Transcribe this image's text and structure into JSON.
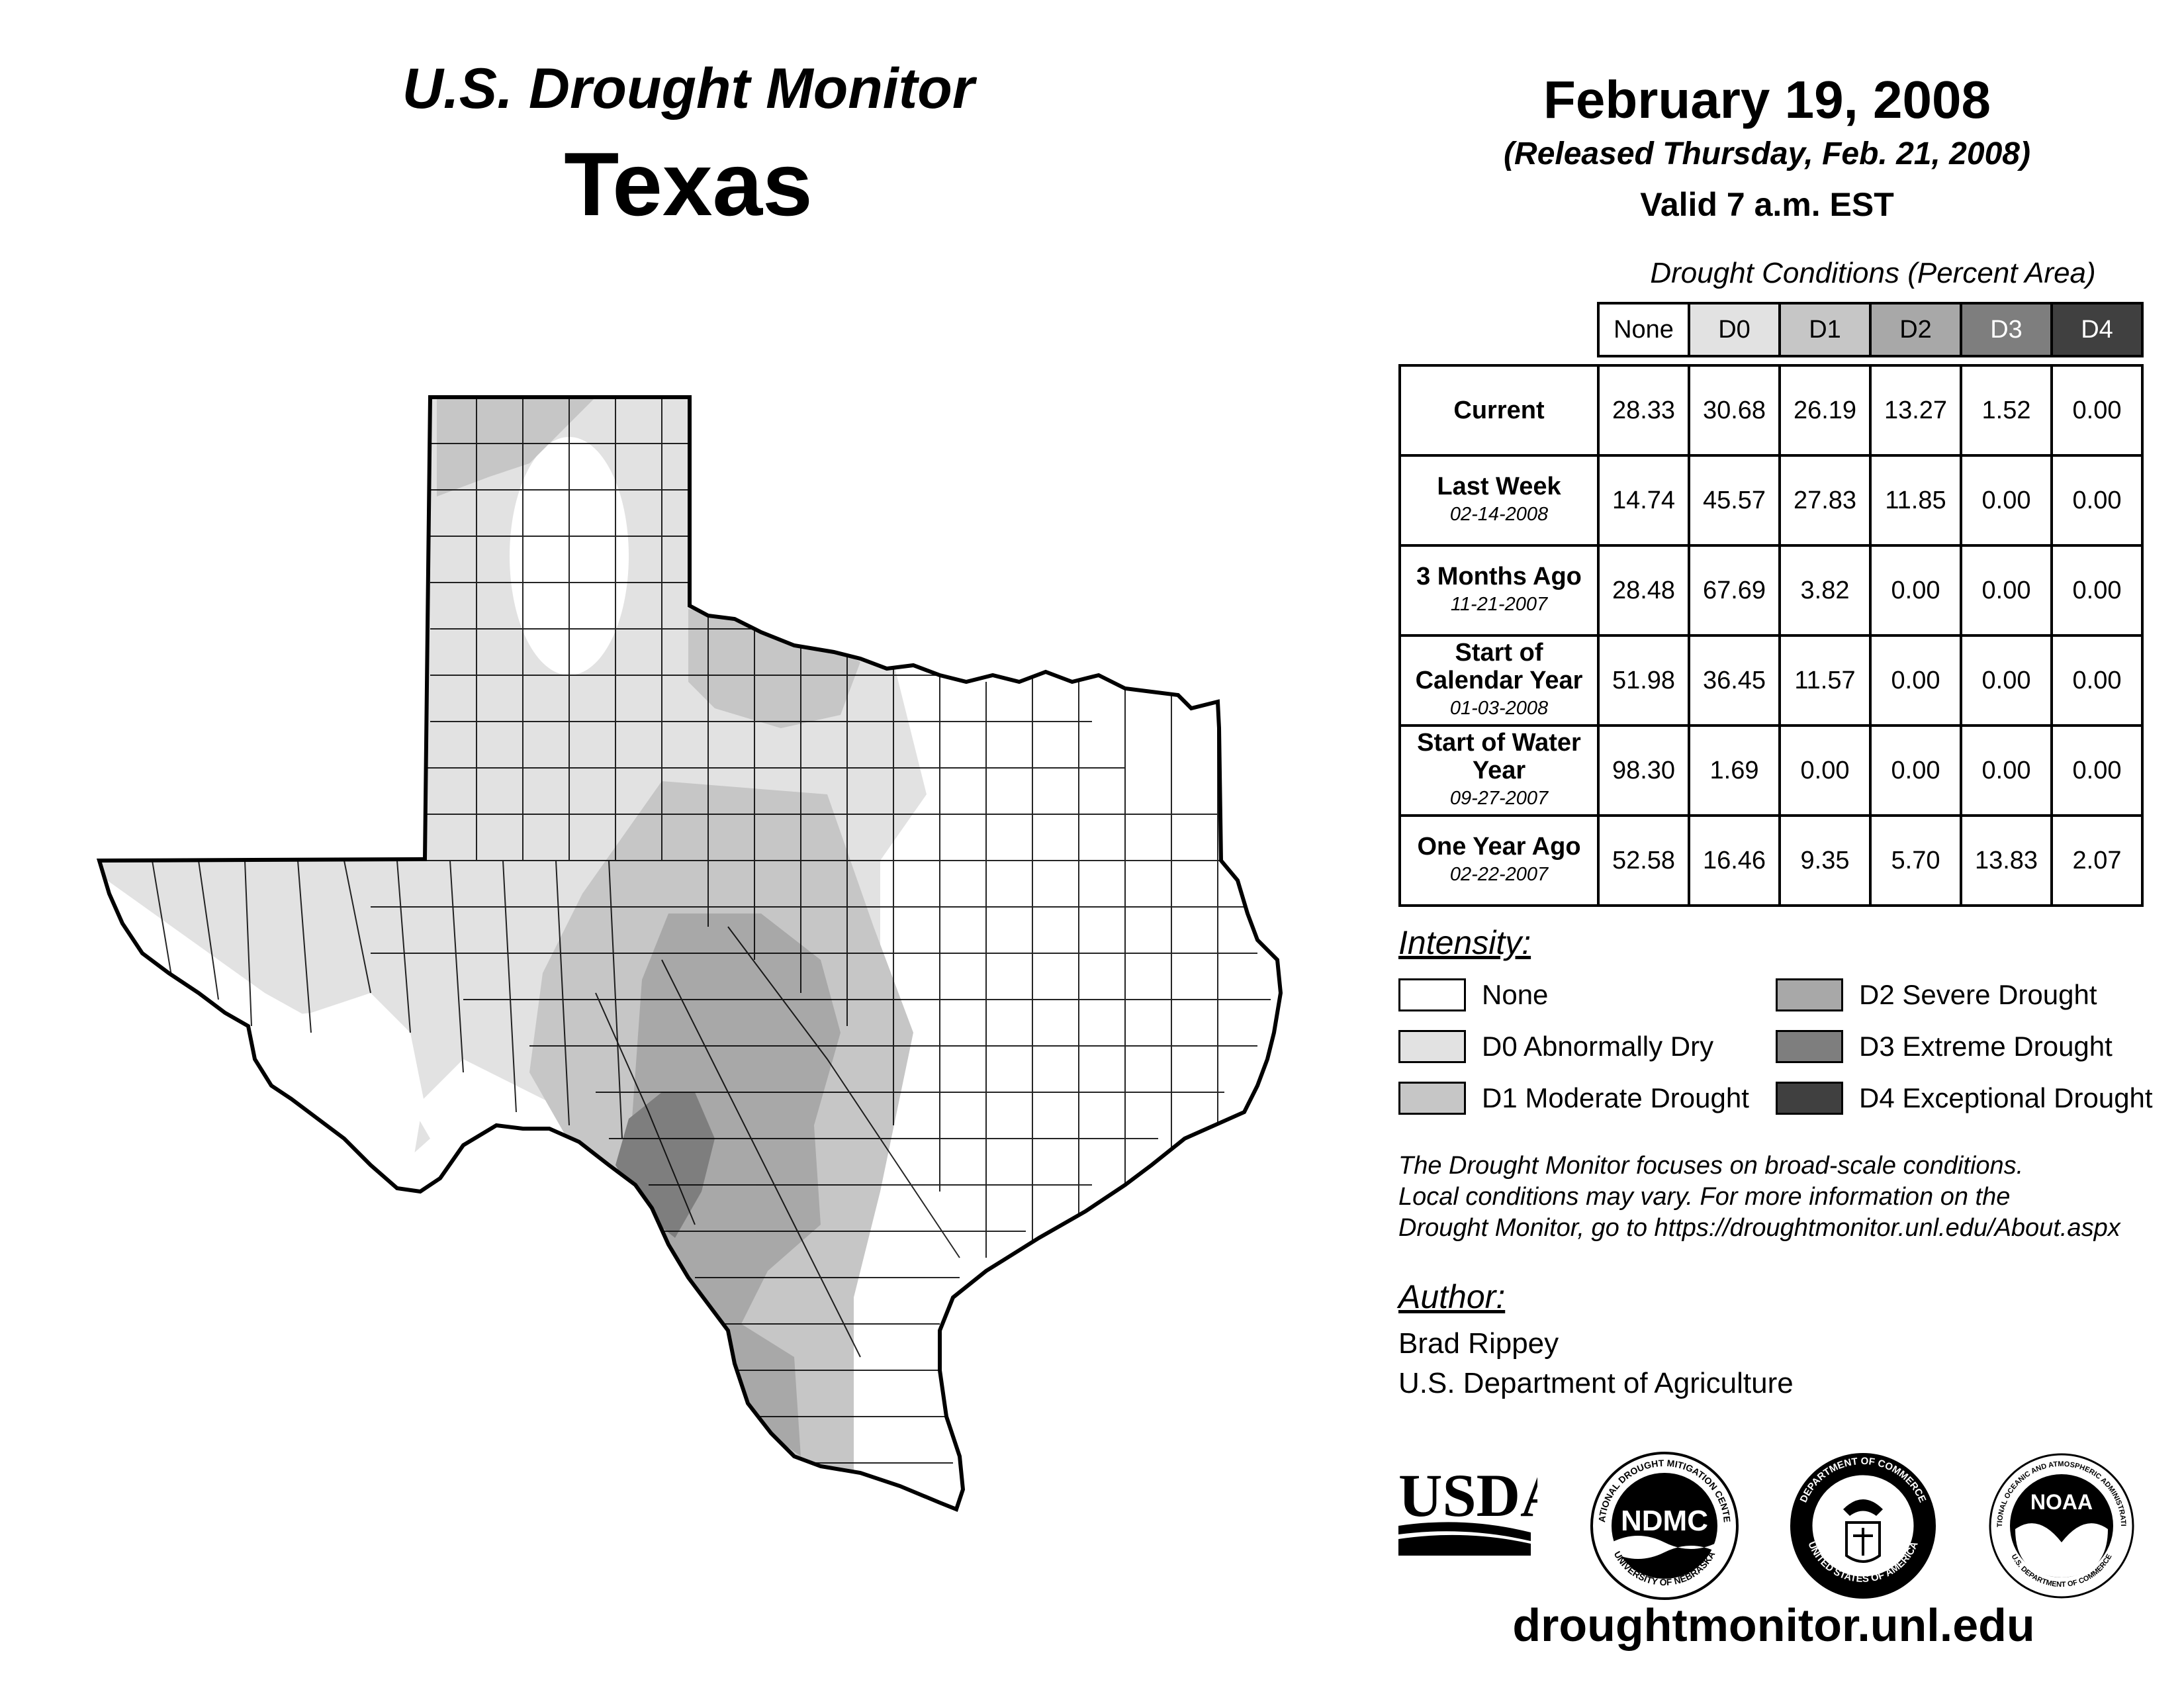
{
  "header": {
    "title": "U.S. Drought Monitor",
    "state": "Texas",
    "date": "February 19, 2008",
    "released": "(Released Thursday, Feb. 21, 2008)",
    "valid": "Valid 7 a.m. EST"
  },
  "table": {
    "caption": "Drought Conditions (Percent Area)",
    "columns": [
      "None",
      "D0",
      "D1",
      "D2",
      "D3",
      "D4"
    ],
    "rows": [
      {
        "label": "Current",
        "date": "",
        "values": [
          "28.33",
          "30.68",
          "26.19",
          "13.27",
          "1.52",
          "0.00"
        ]
      },
      {
        "label": "Last Week",
        "date": "02-14-2008",
        "values": [
          "14.74",
          "45.57",
          "27.83",
          "11.85",
          "0.00",
          "0.00"
        ]
      },
      {
        "label": "3 Months Ago",
        "date": "11-21-2007",
        "values": [
          "28.48",
          "67.69",
          "3.82",
          "0.00",
          "0.00",
          "0.00"
        ]
      },
      {
        "label": "Start of Calendar Year",
        "date": "01-03-2008",
        "values": [
          "51.98",
          "36.45",
          "11.57",
          "0.00",
          "0.00",
          "0.00"
        ]
      },
      {
        "label": "Start of Water Year",
        "date": "09-27-2007",
        "values": [
          "98.30",
          "1.69",
          "0.00",
          "0.00",
          "0.00",
          "0.00"
        ]
      },
      {
        "label": "One Year Ago",
        "date": "02-22-2007",
        "values": [
          "52.58",
          "16.46",
          "9.35",
          "5.70",
          "13.83",
          "2.07"
        ]
      }
    ]
  },
  "legend": {
    "title": "Intensity:",
    "items": [
      {
        "label": "None",
        "color": "#ffffff"
      },
      {
        "label": "D0 Abnormally Dry",
        "color": "#e2e2e2"
      },
      {
        "label": "D1 Moderate Drought",
        "color": "#c6c6c6"
      },
      {
        "label": "D2 Severe Drought",
        "color": "#a8a8a8"
      },
      {
        "label": "D3 Extreme Drought",
        "color": "#7e7e7e"
      },
      {
        "label": "D4 Exceptional Drought",
        "color": "#404040"
      }
    ]
  },
  "note": {
    "line1": "The Drought Monitor focuses on broad-scale conditions.",
    "line2": "Local conditions may vary. For more information on the",
    "line3": "Drought Monitor, go to https://droughtmonitor.unl.edu/About.aspx"
  },
  "author": {
    "title": "Author:",
    "name": "Brad Rippey",
    "org": "U.S. Department of Agriculture"
  },
  "logos": {
    "usda": "USDA",
    "ndmc": "NDMC",
    "ndmc_ring": "NATIONAL DROUGHT MITIGATION CENTER",
    "ndmc_ring_bottom": "UNIVERSITY OF NEBRASKA",
    "doc_ring": "DEPARTMENT OF COMMERCE",
    "doc_ring_bottom": "UNITED STATES OF AMERICA",
    "noaa": "NOAA",
    "noaa_ring": "NATIONAL OCEANIC AND ATMOSPHERIC ADMINISTRATION",
    "noaa_ring_bottom": "U.S. DEPARTMENT OF COMMERCE"
  },
  "website": "droughtmonitor.unl.edu",
  "map": {
    "region": "Texas",
    "categories_shown": [
      "None",
      "D0",
      "D1",
      "D2",
      "D3"
    ]
  }
}
